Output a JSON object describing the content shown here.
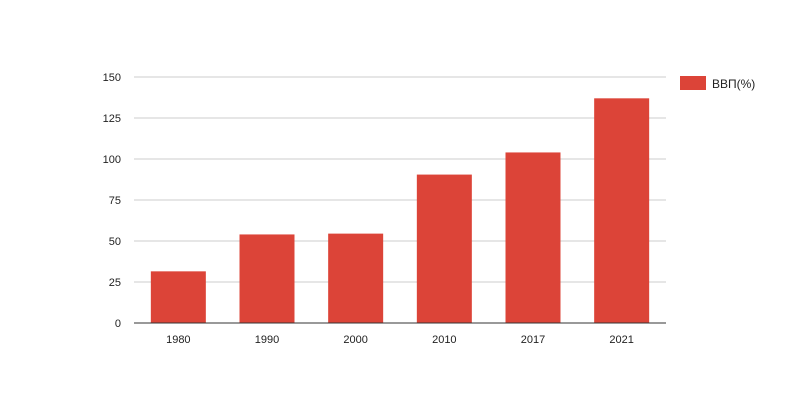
{
  "chart_data": {
    "type": "bar",
    "title": "",
    "xlabel": "",
    "ylabel": "",
    "categories": [
      "1980",
      "1990",
      "2000",
      "2010",
      "2017",
      "2021"
    ],
    "series": [
      {
        "name": "ВВП(%)",
        "values": [
          31.5,
          54,
          54.5,
          90.5,
          104,
          137
        ],
        "color": "#dc4438"
      }
    ],
    "ylim": [
      0,
      150
    ],
    "yticks": [
      "0",
      "25",
      "50",
      "75",
      "100",
      "125",
      "150"
    ],
    "grid": true,
    "legend_position": "right-top",
    "colors": {
      "grid": "#cccccc",
      "axis": "#333333",
      "text": "#222222"
    }
  }
}
